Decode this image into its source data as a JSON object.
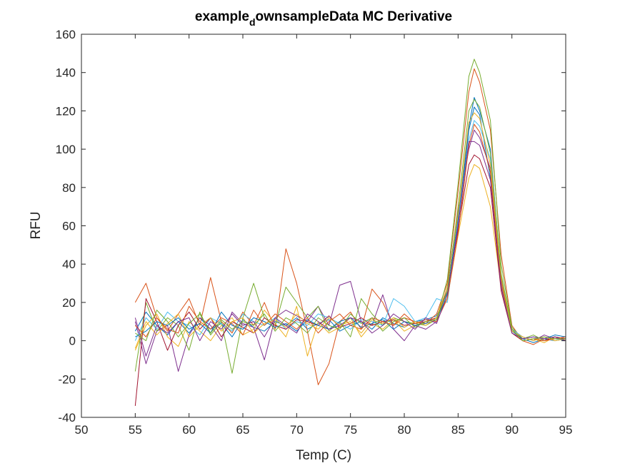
{
  "chart_data": {
    "type": "line",
    "title_main": "example",
    "title_subscript": "d",
    "title_rest": "ownsampleData MC Derivative",
    "xlabel": "Temp (C)",
    "ylabel": "RFU",
    "xlim": [
      50,
      95
    ],
    "ylim": [
      -40,
      160
    ],
    "xticks": [
      50,
      55,
      60,
      65,
      70,
      75,
      80,
      85,
      90,
      95
    ],
    "yticks": [
      -40,
      -20,
      0,
      20,
      40,
      60,
      80,
      100,
      120,
      140,
      160
    ],
    "grid": false,
    "legend": "none",
    "colors": [
      "#0072BD",
      "#D95319",
      "#EDB120",
      "#7E2F8E",
      "#77AC30",
      "#4DBEEE",
      "#A2142F"
    ],
    "x": [
      55,
      56,
      57,
      58,
      59,
      60,
      61,
      62,
      63,
      64,
      65,
      66,
      67,
      68,
      69,
      70,
      71,
      72,
      73,
      74,
      75,
      76,
      77,
      78,
      79,
      80,
      81,
      82,
      83,
      84,
      85,
      86,
      86.5,
      87,
      88,
      89,
      90,
      91,
      92,
      93,
      94,
      95
    ],
    "series": [
      {
        "values": [
          5,
          15,
          8,
          3,
          10,
          4,
          12,
          6,
          9,
          2,
          11,
          7,
          5,
          10,
          8,
          12,
          6,
          9,
          11,
          5,
          8,
          10,
          6,
          12,
          9,
          7,
          10,
          11,
          13,
          25,
          60,
          110,
          122,
          118,
          85,
          30,
          5,
          1,
          -1,
          1,
          0,
          1
        ]
      },
      {
        "values": [
          20,
          30,
          12,
          5,
          14,
          22,
          8,
          33,
          10,
          4,
          15,
          8,
          20,
          6,
          48,
          30,
          5,
          -23,
          -12,
          10,
          15,
          6,
          27,
          20,
          8,
          12,
          10,
          9,
          14,
          30,
          78,
          130,
          142,
          135,
          110,
          45,
          8,
          0,
          -2,
          1,
          2,
          0
        ]
      },
      {
        "values": [
          -5,
          8,
          14,
          2,
          -3,
          10,
          5,
          0,
          8,
          12,
          3,
          6,
          16,
          9,
          2,
          18,
          -8,
          10,
          4,
          7,
          12,
          2,
          9,
          6,
          11,
          5,
          8,
          10,
          12,
          22,
          55,
          85,
          92,
          90,
          70,
          28,
          4,
          0,
          1,
          -1,
          2,
          0
        ]
      },
      {
        "values": [
          10,
          -12,
          5,
          8,
          -16,
          3,
          12,
          8,
          0,
          15,
          9,
          7,
          -10,
          12,
          16,
          13,
          10,
          18,
          8,
          29,
          31,
          10,
          8,
          24,
          6,
          0,
          8,
          6,
          10,
          28,
          68,
          100,
          110,
          106,
          90,
          32,
          6,
          2,
          0,
          3,
          1,
          2
        ]
      },
      {
        "values": [
          -16,
          20,
          5,
          12,
          8,
          -5,
          15,
          3,
          10,
          -17,
          12,
          30,
          12,
          8,
          28,
          20,
          12,
          18,
          5,
          10,
          2,
          22,
          14,
          8,
          12,
          10,
          9,
          8,
          11,
          32,
          82,
          138,
          147,
          140,
          115,
          40,
          7,
          1,
          3,
          0,
          2,
          1
        ]
      },
      {
        "values": [
          0,
          12,
          6,
          15,
          10,
          8,
          3,
          12,
          9,
          5,
          14,
          10,
          8,
          12,
          6,
          10,
          8,
          14,
          12,
          9,
          6,
          11,
          10,
          8,
          22,
          18,
          10,
          12,
          22,
          20,
          62,
          105,
          115,
          112,
          95,
          30,
          6,
          2,
          0,
          2,
          1,
          0
        ]
      },
      {
        "values": [
          -34,
          22,
          10,
          -5,
          8,
          15,
          6,
          12,
          2,
          10,
          7,
          4,
          12,
          8,
          6,
          11,
          10,
          8,
          13,
          7,
          9,
          12,
          8,
          10,
          11,
          8,
          9,
          10,
          12,
          26,
          58,
          92,
          97,
          95,
          80,
          26,
          4,
          0,
          1,
          0,
          2,
          1
        ]
      },
      {
        "values": [
          2,
          5,
          10,
          8,
          12,
          6,
          9,
          4,
          15,
          8,
          6,
          12,
          10,
          7,
          9,
          5,
          11,
          8,
          6,
          10,
          12,
          7,
          9,
          11,
          6,
          10,
          8,
          9,
          11,
          24,
          64,
          112,
          127,
          120,
          100,
          34,
          5,
          1,
          2,
          1,
          3,
          2
        ]
      },
      {
        "values": [
          8,
          2,
          12,
          6,
          4,
          18,
          10,
          6,
          12,
          9,
          3,
          16,
          8,
          14,
          10,
          6,
          12,
          4,
          10,
          14,
          8,
          6,
          12,
          10,
          8,
          14,
          9,
          11,
          10,
          22,
          56,
          102,
          113,
          109,
          88,
          30,
          6,
          0,
          1,
          0,
          1,
          2
        ]
      },
      {
        "values": [
          -4,
          10,
          3,
          9,
          14,
          2,
          8,
          12,
          5,
          10,
          12,
          4,
          9,
          11,
          7,
          14,
          9,
          6,
          12,
          8,
          10,
          4,
          11,
          9,
          12,
          7,
          10,
          8,
          12,
          28,
          66,
          114,
          119,
          116,
          92,
          33,
          5,
          2,
          0,
          2,
          0,
          1
        ]
      },
      {
        "values": [
          12,
          -8,
          8,
          4,
          10,
          12,
          0,
          10,
          6,
          14,
          8,
          10,
          2,
          12,
          8,
          4,
          14,
          10,
          6,
          8,
          12,
          10,
          4,
          8,
          14,
          10,
          6,
          12,
          9,
          24,
          60,
          104,
          104,
          102,
          84,
          28,
          4,
          1,
          2,
          1,
          2,
          0
        ]
      },
      {
        "values": [
          4,
          0,
          16,
          10,
          2,
          9,
          14,
          4,
          11,
          6,
          10,
          8,
          14,
          5,
          12,
          9,
          4,
          12,
          8,
          6,
          14,
          9,
          12,
          5,
          10,
          12,
          7,
          10,
          11,
          26,
          70,
          120,
          126,
          122,
          98,
          35,
          6,
          0,
          1,
          2,
          1,
          1
        ]
      }
    ]
  }
}
